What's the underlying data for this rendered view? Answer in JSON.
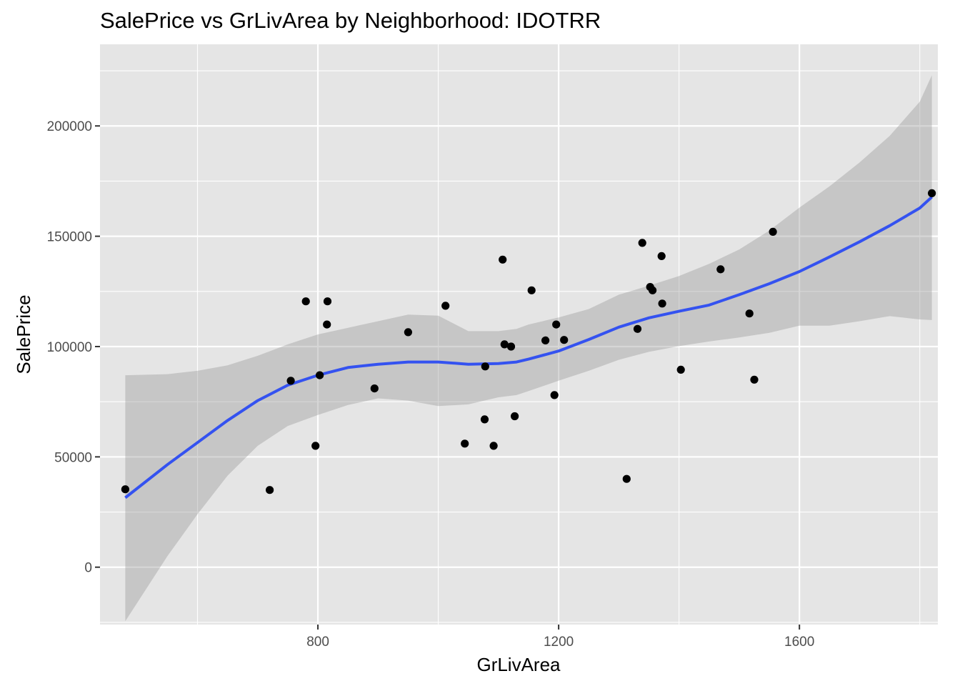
{
  "chart_data": {
    "type": "scatter",
    "title": "SalePrice vs GrLivArea by Neighborhood: IDOTRR",
    "xlabel": "GrLivArea",
    "ylabel": "SalePrice",
    "xlim": [
      438,
      1830
    ],
    "ylim": [
      -26000,
      237000
    ],
    "x_ticks": [
      800,
      1200,
      1600
    ],
    "x_tick_labels": [
      "800",
      "1200",
      "1600"
    ],
    "x_minor_ticks": [
      600,
      1000,
      1400,
      1800
    ],
    "y_ticks": [
      0,
      50000,
      100000,
      150000,
      200000
    ],
    "y_tick_labels": [
      "0",
      "50000",
      "100000",
      "150000",
      "200000"
    ],
    "y_minor_ticks": [
      -25000,
      25000,
      75000,
      125000,
      175000,
      225000
    ],
    "grid": true,
    "colors": {
      "panel": "#e5e5e5",
      "grid": "#ffffff",
      "points": "#000000",
      "smooth_line": "#3452f0",
      "confidence_band": "#bfbfbf"
    },
    "points": [
      {
        "x": 480,
        "y": 35311
      },
      {
        "x": 720,
        "y": 35000
      },
      {
        "x": 755,
        "y": 84500
      },
      {
        "x": 780,
        "y": 120500
      },
      {
        "x": 796,
        "y": 55000
      },
      {
        "x": 803,
        "y": 87000
      },
      {
        "x": 815,
        "y": 110000
      },
      {
        "x": 816,
        "y": 120500
      },
      {
        "x": 894,
        "y": 81000
      },
      {
        "x": 950,
        "y": 106500
      },
      {
        "x": 1012,
        "y": 118500
      },
      {
        "x": 1044,
        "y": 56000
      },
      {
        "x": 1077,
        "y": 67000
      },
      {
        "x": 1078,
        "y": 91000
      },
      {
        "x": 1092,
        "y": 55000
      },
      {
        "x": 1107,
        "y": 139400
      },
      {
        "x": 1110,
        "y": 101000
      },
      {
        "x": 1121,
        "y": 100000
      },
      {
        "x": 1127,
        "y": 68400
      },
      {
        "x": 1155,
        "y": 125500
      },
      {
        "x": 1178,
        "y": 102776
      },
      {
        "x": 1193,
        "y": 78000
      },
      {
        "x": 1196,
        "y": 110000
      },
      {
        "x": 1209,
        "y": 103000
      },
      {
        "x": 1313,
        "y": 40000
      },
      {
        "x": 1331,
        "y": 108000
      },
      {
        "x": 1339,
        "y": 147000
      },
      {
        "x": 1352,
        "y": 127000
      },
      {
        "x": 1356,
        "y": 125500
      },
      {
        "x": 1371,
        "y": 141000
      },
      {
        "x": 1372,
        "y": 119500
      },
      {
        "x": 1403,
        "y": 89500
      },
      {
        "x": 1469,
        "y": 135000
      },
      {
        "x": 1517,
        "y": 115000
      },
      {
        "x": 1525,
        "y": 85000
      },
      {
        "x": 1556,
        "y": 152000
      },
      {
        "x": 1820,
        "y": 169500
      }
    ],
    "smooth": {
      "method": "loess",
      "x": [
        480,
        550,
        600,
        650,
        700,
        750,
        800,
        850,
        900,
        950,
        1000,
        1050,
        1100,
        1130,
        1150,
        1200,
        1250,
        1300,
        1350,
        1400,
        1450,
        1500,
        1550,
        1600,
        1650,
        1700,
        1750,
        1800,
        1820
      ],
      "y": [
        31500,
        46500,
        56500,
        66500,
        75500,
        82500,
        87000,
        90500,
        92000,
        93000,
        93000,
        92000,
        92300,
        93000,
        94300,
        98000,
        103200,
        108800,
        113000,
        116000,
        118800,
        123500,
        128500,
        134000,
        140600,
        147500,
        154800,
        162800,
        167800
      ],
      "upper": [
        87000,
        87500,
        89000,
        91500,
        95800,
        101000,
        105500,
        108500,
        111500,
        114500,
        114000,
        107000,
        107000,
        108000,
        110000,
        113200,
        117000,
        123500,
        127600,
        132000,
        137500,
        144000,
        152600,
        163000,
        172600,
        183500,
        195500,
        211000,
        223000
      ],
      "lower": [
        -24500,
        5000,
        24000,
        41500,
        55000,
        64000,
        69000,
        73500,
        76500,
        75500,
        73000,
        73800,
        77000,
        78000,
        79800,
        84500,
        89000,
        94000,
        97600,
        100200,
        102300,
        104100,
        106200,
        109500,
        109500,
        111500,
        113800,
        112300,
        112000
      ]
    }
  }
}
